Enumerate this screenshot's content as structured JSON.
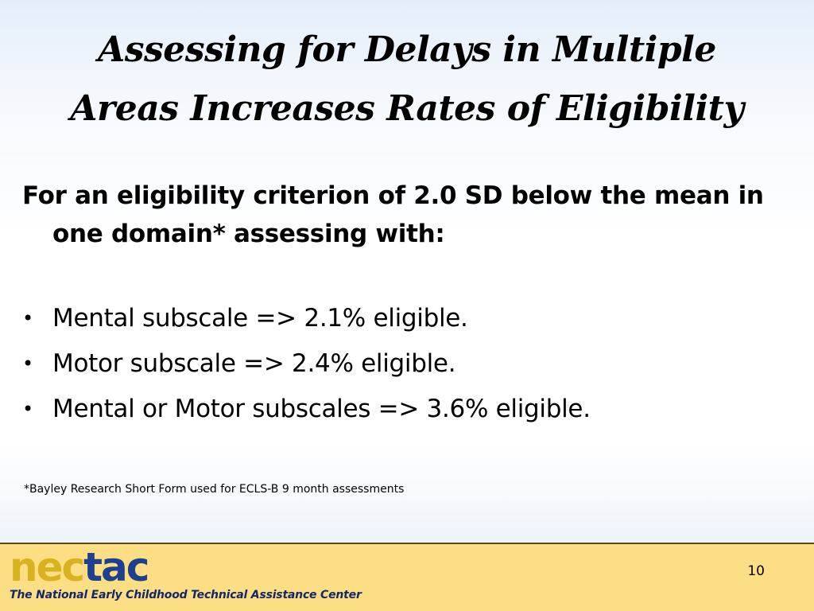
{
  "title": {
    "line1": "Assessing for Delays in Multiple",
    "line2": "Areas Increases Rates of Eligibility"
  },
  "lead": "For an eligibility criterion of 2.0 SD below the mean in one domain* assessing with:",
  "bullets": [
    "Mental subscale => 2.1% eligible.",
    "Motor subscale => 2.4% eligible.",
    "Mental or Motor subscales => 3.6% eligible."
  ],
  "bullet_glyph": "•",
  "footnote": "*Bayley Research Short Form used for ECLS-B 9 month assessments",
  "footer": {
    "logo_part1": "nec",
    "logo_part2": "tac",
    "tagline": "The National Early Childhood Technical Assistance Center",
    "page_number": "10",
    "colors": {
      "band": "#fcdf84",
      "logo_nec": "#d9b21f",
      "logo_tac": "#1f3f8f"
    }
  }
}
